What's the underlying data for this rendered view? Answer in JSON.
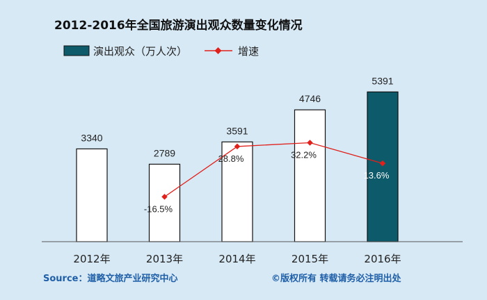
{
  "chart_data": {
    "type": "bar",
    "title": "2012-2016年全国旅游演出观众数量变化情况",
    "categories": [
      "2012年",
      "2013年",
      "2014年",
      "2015年",
      "2016年"
    ],
    "series": [
      {
        "name": "演出观众（万人次）",
        "type": "bar",
        "values": [
          3340,
          2789,
          3591,
          4746,
          5391
        ],
        "value_labels": [
          "3340",
          "2789",
          "3591",
          "4746",
          "5391"
        ],
        "highlight_index": 4,
        "color": "#ffffff",
        "highlight_color": "#0d5a6b"
      },
      {
        "name": "增速",
        "type": "line",
        "values": [
          null,
          -16.5,
          28.8,
          32.2,
          13.6
        ],
        "value_labels": [
          "",
          "-16.5%",
          "28.8%",
          "32.2%",
          "13.6%"
        ],
        "color": "#e0201b"
      }
    ],
    "legend_position": "top-left",
    "grid": false
  },
  "footer": {
    "source": "Source：道略文旅产业研究中心",
    "copyright": "©版权所有  转载请务必注明出处"
  }
}
